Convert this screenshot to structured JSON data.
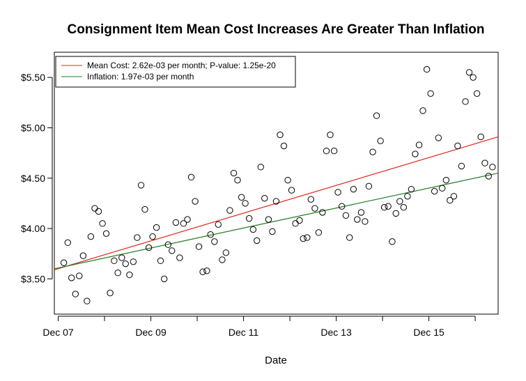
{
  "chart_data": {
    "type": "scatter",
    "title": "Consignment Item Mean Cost Increases Are Greater Than Inflation",
    "xlabel": "Date",
    "ylabel": "",
    "x_ticks": [
      "Dec 07",
      "Dec 09",
      "Dec 11",
      "Dec 13",
      "Dec 15"
    ],
    "x_tick_minor": [
      "2008-12",
      "2010-12",
      "2012-12",
      "2014-12",
      "2016-12"
    ],
    "y_ticks": [
      "$3.50",
      "$4.00",
      "$4.50",
      "$5.00",
      "$5.50"
    ],
    "xlim": [
      "2007-11-01",
      "2017-05-30"
    ],
    "ylim": [
      3.15,
      5.75
    ],
    "grid": false,
    "legend_position": "top-left",
    "series": [
      {
        "name": "Mean Cost: 2.62e-03 per month; P-value: 1.25e-20",
        "kind": "line",
        "color": "#e0241b",
        "start": [
          "2007-11-01",
          3.59
        ],
        "end": [
          "2017-05-30",
          4.91
        ]
      },
      {
        "name": "Inflation: 1.97e-03 per month",
        "kind": "line",
        "color": "#1e7b1e",
        "start": [
          "2007-11-01",
          3.6
        ],
        "end": [
          "2017-05-30",
          4.55
        ]
      }
    ],
    "points": [
      [
        "2008-01",
        3.66
      ],
      [
        "2008-02",
        3.86
      ],
      [
        "2008-03",
        3.51
      ],
      [
        "2008-04",
        3.35
      ],
      [
        "2008-05",
        3.53
      ],
      [
        "2008-06",
        3.73
      ],
      [
        "2008-07",
        3.28
      ],
      [
        "2008-08",
        3.92
      ],
      [
        "2008-09",
        4.2
      ],
      [
        "2008-10",
        4.17
      ],
      [
        "2008-11",
        4.05
      ],
      [
        "2008-12",
        3.95
      ],
      [
        "2009-01",
        3.36
      ],
      [
        "2009-02",
        3.68
      ],
      [
        "2009-03",
        3.56
      ],
      [
        "2009-04",
        3.71
      ],
      [
        "2009-05",
        3.65
      ],
      [
        "2009-06",
        3.54
      ],
      [
        "2009-07",
        3.67
      ],
      [
        "2009-08",
        3.91
      ],
      [
        "2009-09",
        4.43
      ],
      [
        "2009-10",
        4.19
      ],
      [
        "2009-11",
        3.81
      ],
      [
        "2009-12",
        3.92
      ],
      [
        "2010-01",
        4.01
      ],
      [
        "2010-02",
        3.68
      ],
      [
        "2010-03",
        3.5
      ],
      [
        "2010-04",
        3.84
      ],
      [
        "2010-05",
        3.78
      ],
      [
        "2010-06",
        4.06
      ],
      [
        "2010-07",
        3.71
      ],
      [
        "2010-08",
        4.05
      ],
      [
        "2010-09",
        4.09
      ],
      [
        "2010-10",
        4.51
      ],
      [
        "2010-11",
        4.27
      ],
      [
        "2010-12",
        3.82
      ],
      [
        "2011-01",
        3.57
      ],
      [
        "2011-02",
        3.58
      ],
      [
        "2011-03",
        3.94
      ],
      [
        "2011-04",
        3.87
      ],
      [
        "2011-05",
        4.04
      ],
      [
        "2011-06",
        3.69
      ],
      [
        "2011-07",
        3.76
      ],
      [
        "2011-08",
        4.18
      ],
      [
        "2011-09",
        4.55
      ],
      [
        "2011-10",
        4.48
      ],
      [
        "2011-11",
        4.31
      ],
      [
        "2011-12",
        4.25
      ],
      [
        "2012-01",
        4.1
      ],
      [
        "2012-02",
        3.99
      ],
      [
        "2012-03",
        3.88
      ],
      [
        "2012-04",
        4.61
      ],
      [
        "2012-05",
        4.3
      ],
      [
        "2012-06",
        4.09
      ],
      [
        "2012-07",
        3.97
      ],
      [
        "2012-08",
        4.27
      ],
      [
        "2012-09",
        4.93
      ],
      [
        "2012-10",
        4.82
      ],
      [
        "2012-11",
        4.48
      ],
      [
        "2012-12",
        4.38
      ],
      [
        "2013-01",
        4.05
      ],
      [
        "2013-02",
        4.08
      ],
      [
        "2013-03",
        3.9
      ],
      [
        "2013-04",
        3.91
      ],
      [
        "2013-05",
        4.29
      ],
      [
        "2013-06",
        4.2
      ],
      [
        "2013-07",
        3.96
      ],
      [
        "2013-08",
        4.16
      ],
      [
        "2013-09",
        4.77
      ],
      [
        "2013-10",
        4.93
      ],
      [
        "2013-11",
        4.77
      ],
      [
        "2013-12",
        4.36
      ],
      [
        "2014-01",
        4.22
      ],
      [
        "2014-02",
        4.13
      ],
      [
        "2014-03",
        3.91
      ],
      [
        "2014-04",
        4.39
      ],
      [
        "2014-05",
        4.09
      ],
      [
        "2014-06",
        4.16
      ],
      [
        "2014-07",
        4.07
      ],
      [
        "2014-08",
        4.42
      ],
      [
        "2014-09",
        4.76
      ],
      [
        "2014-10",
        5.12
      ],
      [
        "2014-11",
        4.87
      ],
      [
        "2014-12",
        4.21
      ],
      [
        "2015-01",
        4.22
      ],
      [
        "2015-02",
        3.87
      ],
      [
        "2015-03",
        4.15
      ],
      [
        "2015-04",
        4.27
      ],
      [
        "2015-05",
        4.21
      ],
      [
        "2015-06",
        4.32
      ],
      [
        "2015-07",
        4.39
      ],
      [
        "2015-08",
        4.74
      ],
      [
        "2015-09",
        4.83
      ],
      [
        "2015-10",
        5.17
      ],
      [
        "2015-11",
        5.58
      ],
      [
        "2015-12",
        5.34
      ],
      [
        "2016-01",
        4.37
      ],
      [
        "2016-02",
        4.9
      ],
      [
        "2016-03",
        4.4
      ],
      [
        "2016-04",
        4.48
      ],
      [
        "2016-05",
        4.28
      ],
      [
        "2016-06",
        4.32
      ],
      [
        "2016-07",
        4.82
      ],
      [
        "2016-08",
        4.62
      ],
      [
        "2016-09",
        5.26
      ],
      [
        "2016-10",
        5.55
      ],
      [
        "2016-11",
        5.5
      ],
      [
        "2016-12",
        5.34
      ],
      [
        "2017-01",
        4.91
      ],
      [
        "2017-02",
        4.65
      ],
      [
        "2017-03",
        4.52
      ],
      [
        "2017-04",
        4.61
      ]
    ]
  }
}
